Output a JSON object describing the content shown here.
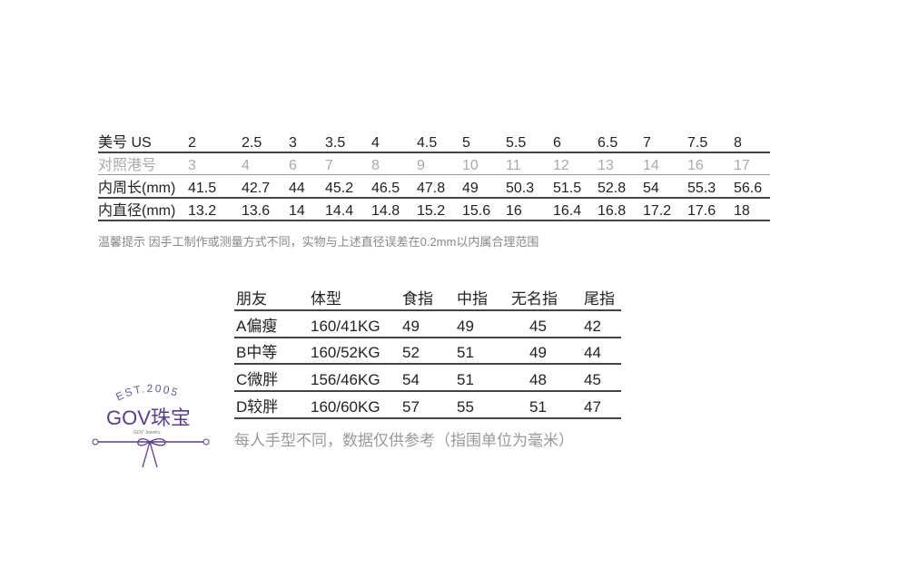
{
  "size_table": {
    "rows": [
      {
        "label": "美号 US",
        "values": [
          "2",
          "2.5",
          "3",
          "3.5",
          "4",
          "4.5",
          "5",
          "5.5",
          "6",
          "6.5",
          "7",
          "7.5",
          "8"
        ],
        "muted": false
      },
      {
        "label": "对照港号",
        "values": [
          "3",
          "4",
          "6",
          "7",
          "8",
          "9",
          "10",
          "11",
          "12",
          "13",
          "14",
          "16",
          "17"
        ],
        "muted": true
      },
      {
        "label": "内周长(mm)",
        "values": [
          "41.5",
          "42.7",
          "44",
          "45.2",
          "46.5",
          "47.8",
          "49",
          "50.3",
          "51.5",
          "52.8",
          "54",
          "55.3",
          "56.6"
        ],
        "muted": false
      },
      {
        "label": "内直径(mm)",
        "values": [
          "13.2",
          "13.6",
          "14",
          "14.4",
          "14.8",
          "15.2",
          "15.6",
          "16",
          "16.4",
          "16.8",
          "17.2",
          "17.6",
          "18"
        ],
        "muted": false
      }
    ],
    "note": "温馨提示 因手工制作或测量方式不同，实物与上述直径误差在0.2mm以内属合理范围"
  },
  "friends_table": {
    "headers": [
      "朋友",
      "体型",
      "食指",
      "中指",
      "无名指",
      "尾指"
    ],
    "rows": [
      [
        "A偏瘦",
        "160/41KG",
        "49",
        "49",
        "45",
        "42"
      ],
      [
        "B中等",
        "160/52KG",
        "52",
        "51",
        "49",
        "44"
      ],
      [
        "C微胖",
        "156/46KG",
        "54",
        "51",
        "48",
        "45"
      ],
      [
        "D较胖",
        "160/60KG",
        "57",
        "55",
        "51",
        "47"
      ]
    ],
    "note": "每人手型不同，数据仅供参考（指围单位为毫米）"
  },
  "logo": {
    "est": "EST.2005",
    "brand": "GOV珠宝",
    "sub": "GOV Jewelry",
    "color": "#5a3d8a"
  }
}
